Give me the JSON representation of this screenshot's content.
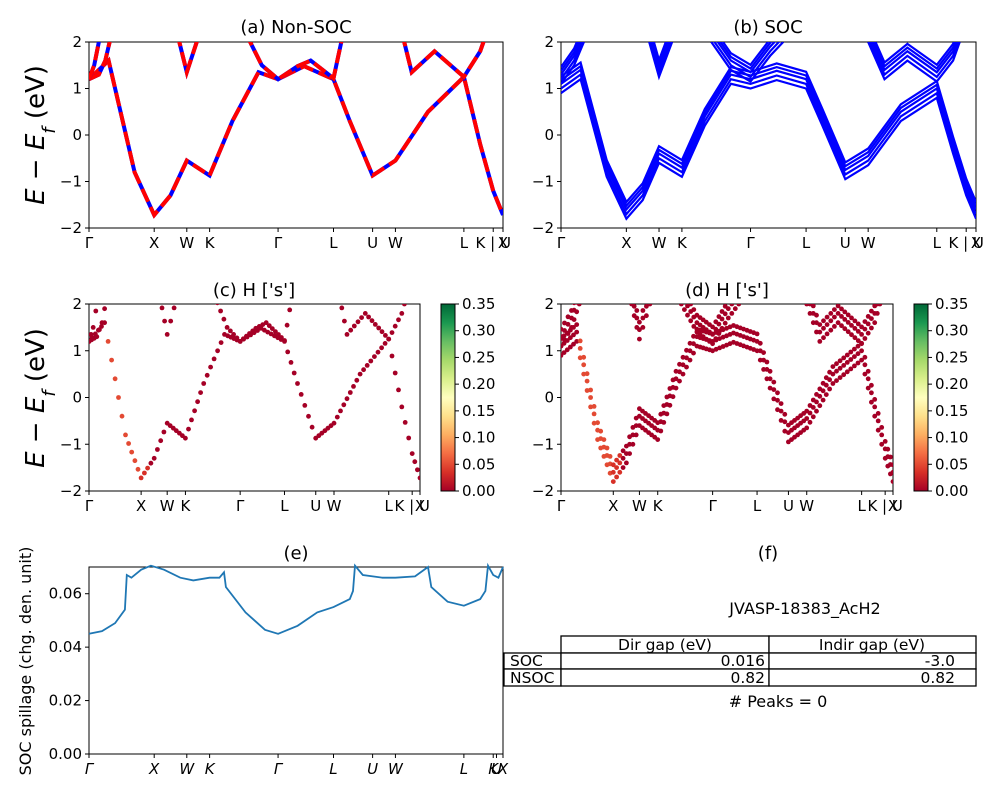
{
  "figure_label": "JVASP-18383_AcH2",
  "colors": {
    "nonsoc_solid": "#0000ff",
    "nonsoc_dashed": "#ff0000",
    "soc": "#0000ff",
    "spillage": "#1f77b4"
  },
  "kpath": {
    "labels": [
      "Γ",
      "X",
      "W",
      "K",
      "Γ",
      "L",
      "U",
      "W",
      "L",
      "K | U",
      "X"
    ],
    "positions": [
      0,
      1.0,
      1.5,
      1.85,
      2.9,
      3.75,
      4.35,
      4.7,
      5.75,
      6.2,
      6.35
    ]
  },
  "panel_titles": {
    "a": "(a) Non-SOC",
    "b": "(b) SOC",
    "c": "(c)  H ['s']",
    "d": "(d) H ['s']",
    "e": "(e)",
    "f": "(f)"
  },
  "y_label_bands": "E − E_f (eV)",
  "y_label_spillage": "SOC spillage (chg. den. unit)",
  "chart_data": [
    {
      "id": "a",
      "type": "line",
      "title": "(a) Non-SOC",
      "ylim": [
        -2,
        2
      ],
      "yticks": [
        -2,
        -1,
        0,
        1,
        2
      ],
      "series": [
        {
          "style": "blue solid + red dashed overlay",
          "bands": [
            [
              [
                0,
                1.2
              ],
              [
                0.3,
                1.6
              ],
              [
                0.7,
                -0.8
              ],
              [
                1.0,
                -1.72
              ],
              [
                1.25,
                -1.3
              ],
              [
                1.5,
                -0.55
              ],
              [
                1.85,
                -0.87
              ],
              [
                2.2,
                0.3
              ],
              [
                2.6,
                1.35
              ],
              [
                2.9,
                1.2
              ],
              [
                3.3,
                1.48
              ],
              [
                3.75,
                1.2
              ],
              [
                4.0,
                0.3
              ],
              [
                4.35,
                -0.87
              ],
              [
                4.7,
                -0.55
              ],
              [
                5.2,
                0.5
              ],
              [
                5.75,
                1.25
              ],
              [
                6.0,
                -0.2
              ],
              [
                6.2,
                -1.2
              ],
              [
                6.35,
                -1.72
              ]
            ],
            [
              [
                0,
                1.2
              ],
              [
                0.15,
                1.3
              ],
              [
                0.25,
                1.6
              ],
              [
                0.35,
                2.2
              ]
            ],
            [
              [
                0,
                1.2
              ],
              [
                0.08,
                1.5
              ],
              [
                0.18,
                2.2
              ]
            ],
            [
              [
                1.35,
                2.2
              ],
              [
                1.5,
                1.35
              ],
              [
                1.7,
                2.2
              ]
            ],
            [
              [
                2.4,
                2.2
              ],
              [
                2.65,
                1.5
              ],
              [
                2.9,
                1.2
              ],
              [
                3.2,
                1.48
              ],
              [
                3.4,
                1.6
              ],
              [
                3.75,
                1.22
              ],
              [
                3.9,
                2.2
              ]
            ],
            [
              [
                4.8,
                2.2
              ],
              [
                4.95,
                1.35
              ],
              [
                5.3,
                1.8
              ],
              [
                5.75,
                1.25
              ],
              [
                6.0,
                1.8
              ],
              [
                6.1,
                2.2
              ]
            ]
          ]
        }
      ]
    },
    {
      "id": "b",
      "type": "line",
      "title": "(b) SOC",
      "ylim": [
        -2,
        2
      ],
      "yticks": [
        -2,
        -1,
        0,
        1,
        2
      ],
      "series": [
        {
          "style": "blue",
          "split": [
            -0.2,
            -0.1,
            0,
            0.08,
            0.16
          ],
          "bands": [
            [
              [
                0,
                1.1
              ],
              [
                0.3,
                1.4
              ],
              [
                0.7,
                -0.7
              ],
              [
                1.0,
                -1.6
              ],
              [
                1.25,
                -1.2
              ],
              [
                1.5,
                -0.4
              ],
              [
                1.85,
                -0.7
              ],
              [
                2.2,
                0.4
              ],
              [
                2.6,
                1.3
              ],
              [
                2.9,
                1.2
              ],
              [
                3.3,
                1.38
              ],
              [
                3.75,
                1.2
              ],
              [
                4.0,
                0.4
              ],
              [
                4.35,
                -0.75
              ],
              [
                4.7,
                -0.45
              ],
              [
                5.2,
                0.5
              ],
              [
                5.75,
                1.0
              ],
              [
                6.0,
                -0.2
              ],
              [
                6.2,
                -1.1
              ],
              [
                6.35,
                -1.6
              ]
            ],
            [
              [
                0,
                1.3
              ],
              [
                0.2,
                1.7
              ],
              [
                0.35,
                2.2
              ]
            ],
            [
              [
                1.35,
                2.2
              ],
              [
                1.5,
                1.45
              ],
              [
                1.7,
                2.2
              ]
            ],
            [
              [
                2.3,
                2.2
              ],
              [
                2.6,
                1.6
              ],
              [
                2.9,
                1.35
              ],
              [
                3.2,
                1.9
              ],
              [
                3.4,
                2.2
              ]
            ],
            [
              [
                4.7,
                2.2
              ],
              [
                4.95,
                1.4
              ],
              [
                5.3,
                1.8
              ],
              [
                5.75,
                1.35
              ],
              [
                6.0,
                1.8
              ],
              [
                6.1,
                2.2
              ]
            ]
          ]
        }
      ]
    },
    {
      "id": "c",
      "type": "scatter",
      "title": "(c)  H ['s']",
      "ylim": [
        -2,
        2
      ],
      "yticks": [
        -2,
        -1,
        0,
        1,
        2
      ],
      "colorbar": {
        "min": 0.0,
        "max": 0.35,
        "ticks": [
          "0.00",
          "0.05",
          "0.10",
          "0.15",
          "0.20",
          "0.25",
          "0.30",
          "0.35"
        ],
        "colormap": "RdYlGn"
      },
      "series": [
        {
          "point_color": "#a50026",
          "source": "same bands as (a)"
        }
      ]
    },
    {
      "id": "d",
      "type": "scatter",
      "title": "(d) H ['s']",
      "ylim": [
        -2,
        2
      ],
      "yticks": [
        -2,
        -1,
        0,
        1,
        2
      ],
      "colorbar": {
        "min": 0.0,
        "max": 0.35,
        "ticks": [
          "0.00",
          "0.05",
          "0.10",
          "0.15",
          "0.20",
          "0.25",
          "0.30",
          "0.35"
        ],
        "colormap": "RdYlGn"
      },
      "series": [
        {
          "point_color": "#a50026",
          "source": "same bands as (b)"
        }
      ]
    },
    {
      "id": "e",
      "type": "line",
      "title": "(e)",
      "ylabel": "SOC spillage (chg. den. unit)",
      "ylim": [
        0,
        0.07
      ],
      "yticks": [
        "0.00",
        "0.02",
        "0.04",
        "0.06"
      ],
      "xtick_labels": [
        "Γ",
        "X",
        "W",
        "K",
        "Γ",
        "L",
        "U",
        "W",
        "L",
        "K",
        "U",
        "X"
      ],
      "xtick_positions": [
        0,
        1.0,
        1.5,
        1.85,
        2.9,
        3.75,
        4.35,
        4.7,
        5.75,
        6.2,
        6.25,
        6.35
      ],
      "series": [
        {
          "values": [
            [
              0,
              0.045
            ],
            [
              0.2,
              0.046
            ],
            [
              0.4,
              0.049
            ],
            [
              0.55,
              0.054
            ],
            [
              0.58,
              0.067
            ],
            [
              0.65,
              0.066
            ],
            [
              0.8,
              0.069
            ],
            [
              0.95,
              0.0705
            ],
            [
              1.15,
              0.069
            ],
            [
              1.4,
              0.066
            ],
            [
              1.6,
              0.065
            ],
            [
              1.85,
              0.066
            ],
            [
              2.0,
              0.066
            ],
            [
              2.07,
              0.068
            ],
            [
              2.1,
              0.0625
            ],
            [
              2.4,
              0.053
            ],
            [
              2.7,
              0.0465
            ],
            [
              2.9,
              0.045
            ],
            [
              3.2,
              0.048
            ],
            [
              3.5,
              0.053
            ],
            [
              3.75,
              0.055
            ],
            [
              4.0,
              0.058
            ],
            [
              4.05,
              0.061
            ],
            [
              4.08,
              0.0705
            ],
            [
              4.2,
              0.067
            ],
            [
              4.5,
              0.066
            ],
            [
              4.7,
              0.066
            ],
            [
              5.0,
              0.0665
            ],
            [
              5.2,
              0.07
            ],
            [
              5.25,
              0.0625
            ],
            [
              5.5,
              0.057
            ],
            [
              5.75,
              0.0555
            ],
            [
              6.0,
              0.058
            ],
            [
              6.08,
              0.061
            ],
            [
              6.12,
              0.0705
            ],
            [
              6.2,
              0.067
            ],
            [
              6.28,
              0.066
            ],
            [
              6.35,
              0.07
            ]
          ]
        }
      ]
    }
  ],
  "gap_table": {
    "title": "JVASP-18383_AcH2",
    "col_headers": [
      "Dir gap (eV)",
      "Indir gap (eV)"
    ],
    "rows": [
      {
        "label": "SOC",
        "dir": "0.016",
        "indir": "-3.0"
      },
      {
        "label": "NSOC",
        "dir": "0.82",
        "indir": "0.82"
      }
    ],
    "peaks": "# Peaks = 0"
  }
}
